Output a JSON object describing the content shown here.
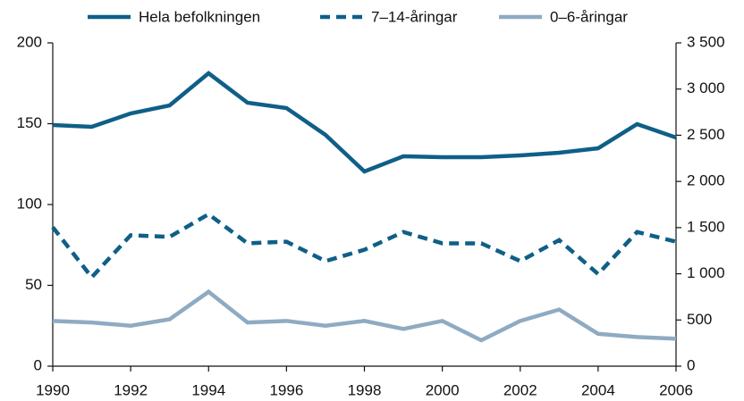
{
  "chart_data": {
    "type": "line",
    "x": [
      1990,
      1991,
      1992,
      1993,
      1994,
      1995,
      1996,
      1997,
      1998,
      1999,
      2000,
      2001,
      2002,
      2003,
      2004,
      2005,
      2006
    ],
    "series": [
      {
        "name": "Hela befolkningen",
        "color": "#0f5f88",
        "dash": false,
        "axis": "y2",
        "values": [
          2610,
          2591,
          2736,
          2823,
          3171,
          2852,
          2794,
          2504,
          2108,
          2272,
          2262,
          2262,
          2282,
          2311,
          2359,
          2620,
          2475
        ]
      },
      {
        "name": "7–14-åringar",
        "color": "#0f5f88",
        "dash": true,
        "values": [
          86,
          55,
          81,
          80,
          94,
          76,
          77,
          65,
          72,
          83,
          76,
          76,
          65,
          78,
          57,
          83,
          77
        ]
      },
      {
        "name": "0–6-åringar",
        "color": "#8fabc3",
        "dash": false,
        "values": [
          28,
          27,
          25,
          29,
          46,
          27,
          28,
          25,
          28,
          23,
          28,
          16,
          28,
          35,
          20,
          18,
          17
        ]
      }
    ],
    "xlim": [
      1990,
      2006
    ],
    "xticks": [
      1990,
      1992,
      1994,
      1996,
      1998,
      2000,
      2002,
      2004,
      2006
    ],
    "ylim": [
      0,
      200
    ],
    "yticks": [
      0,
      50,
      100,
      150,
      200
    ],
    "y2lim": [
      0,
      3500
    ],
    "y2ticks": [
      0,
      500,
      {
        "value": 1000,
        "label": "1 000"
      },
      {
        "value": 1500,
        "label": "1 500"
      },
      {
        "value": 2000,
        "label": "2 000"
      },
      {
        "value": 2500,
        "label": "2 500"
      },
      {
        "value": 3000,
        "label": "3 000"
      },
      {
        "value": 3500,
        "label": "3 500"
      }
    ],
    "legend": "top",
    "grid": false
  }
}
